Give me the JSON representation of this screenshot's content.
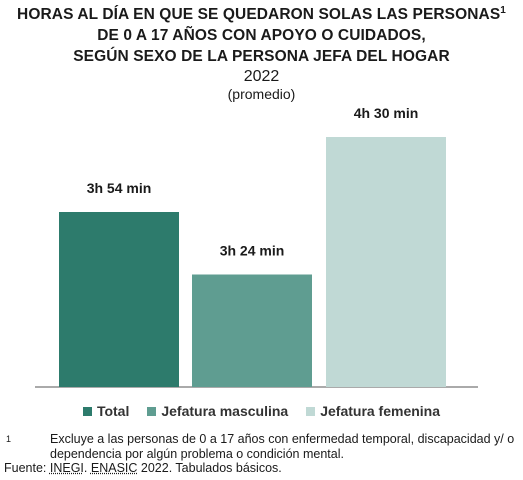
{
  "title": {
    "line1": "HORAS AL DÍA EN QUE SE QUEDARON SOLAS LAS PERSONAS",
    "line1_sup": "1",
    "line2": "DE 0 A 17 AÑOS CON APOYO O CUIDADOS,",
    "line3": "SEGÚN SEXO DE LA PERSONA JEFA DEL HOGAR",
    "year": "2022",
    "subtitle": "(promedio)"
  },
  "chart_data": {
    "type": "bar",
    "categories": [
      "Total",
      "Jefatura masculina",
      "Jefatura femenina"
    ],
    "values": [
      3.9,
      3.4,
      4.5
    ],
    "data_labels": [
      "3h 54 min",
      "3h 24 min",
      "4h 30 min"
    ],
    "colors": [
      "#2d7b6c",
      "#5f9d91",
      "#c0d9d5"
    ],
    "legend_position": "bottom",
    "grid": false,
    "ylim": [
      2.5,
      4.5
    ]
  },
  "legend": [
    {
      "label": "Total",
      "color": "#2d7b6c"
    },
    {
      "label": "Jefatura masculina",
      "color": "#5f9d91"
    },
    {
      "label": "Jefatura femenina",
      "color": "#c0d9d5"
    }
  ],
  "footnote": {
    "mark": "1",
    "text": "Excluye a las personas de 0 a 17 años con enfermedad temporal, discapacidad y/ o dependencia por algún problema o condición mental."
  },
  "source": {
    "prefix": "Fuente: ",
    "inegi": "INEGI",
    "sep1": ". ",
    "enasic": "ENASIC",
    "rest": " 2022. Tabulados básicos."
  }
}
